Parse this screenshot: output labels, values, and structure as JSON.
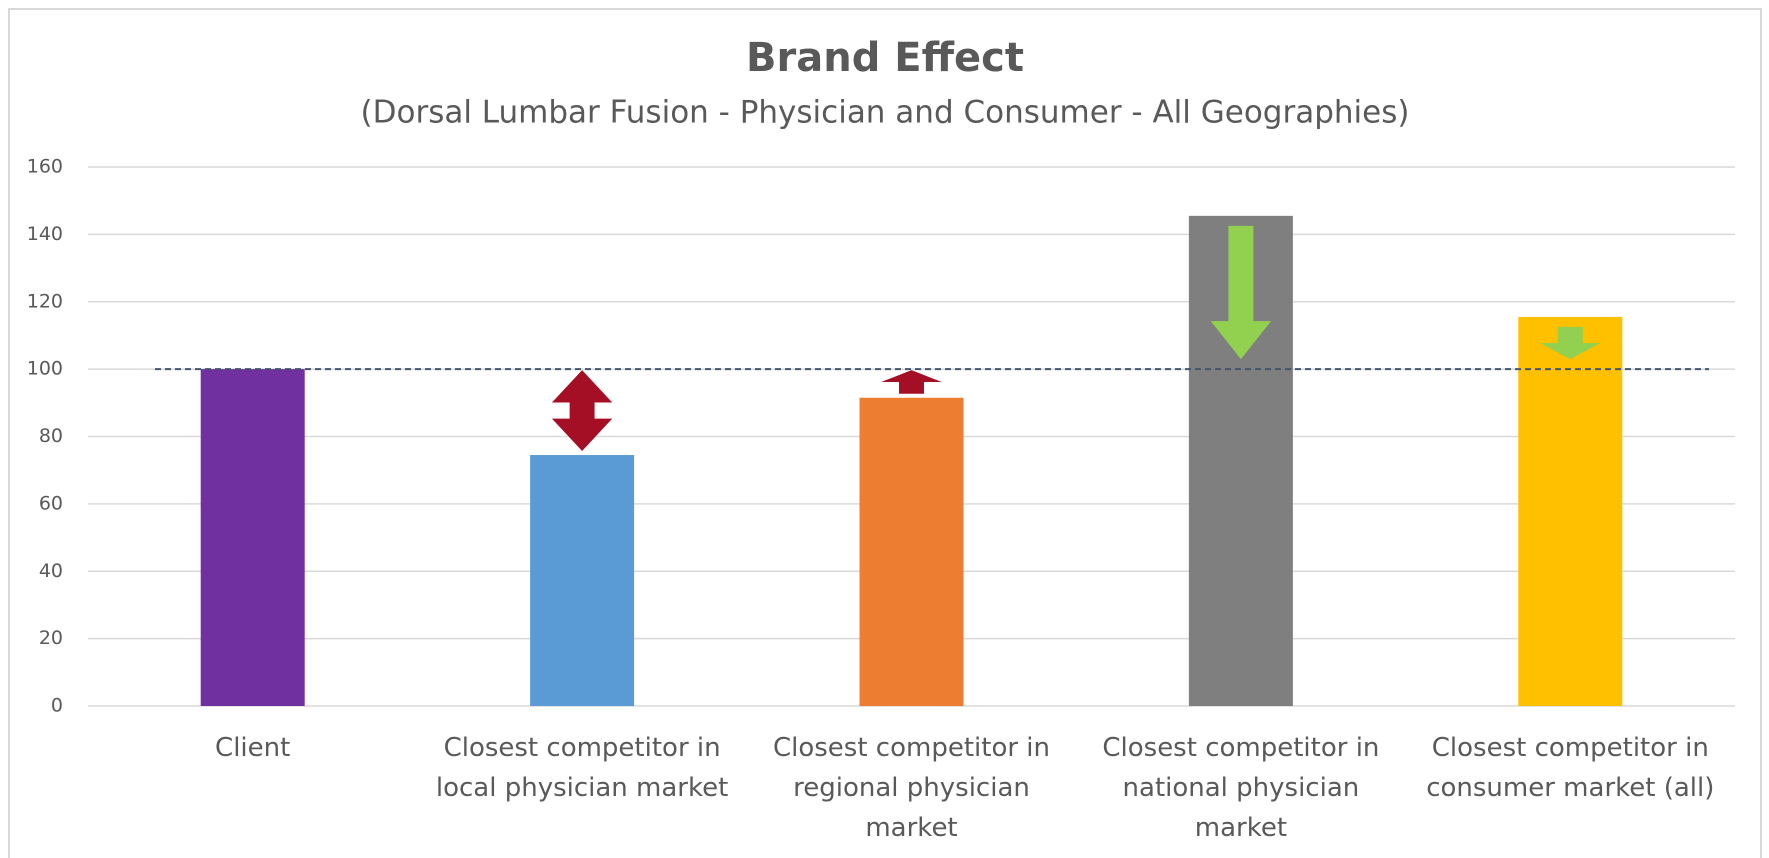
{
  "chart_data": {
    "type": "bar",
    "title": "Brand Effect",
    "subtitle": "(Dorsal Lumbar Fusion - Physician and Consumer - All Geographies)",
    "categories": [
      "Client",
      "Closest competitor in local physician market",
      "Closest competitor in regional physician market",
      "Closest competitor in national physician market",
      "Closest competitor in consumer market (all)"
    ],
    "values": [
      100,
      74.5,
      91.5,
      145.5,
      115.5
    ],
    "colors": [
      "#7030a0",
      "#5b9bd5",
      "#ed7d31",
      "#7f7f7f",
      "#ffc000"
    ],
    "reference_line": 100,
    "ylim": [
      0,
      160
    ],
    "yticks": [
      0,
      20,
      40,
      60,
      80,
      100,
      120,
      140,
      160
    ],
    "grid": true
  }
}
